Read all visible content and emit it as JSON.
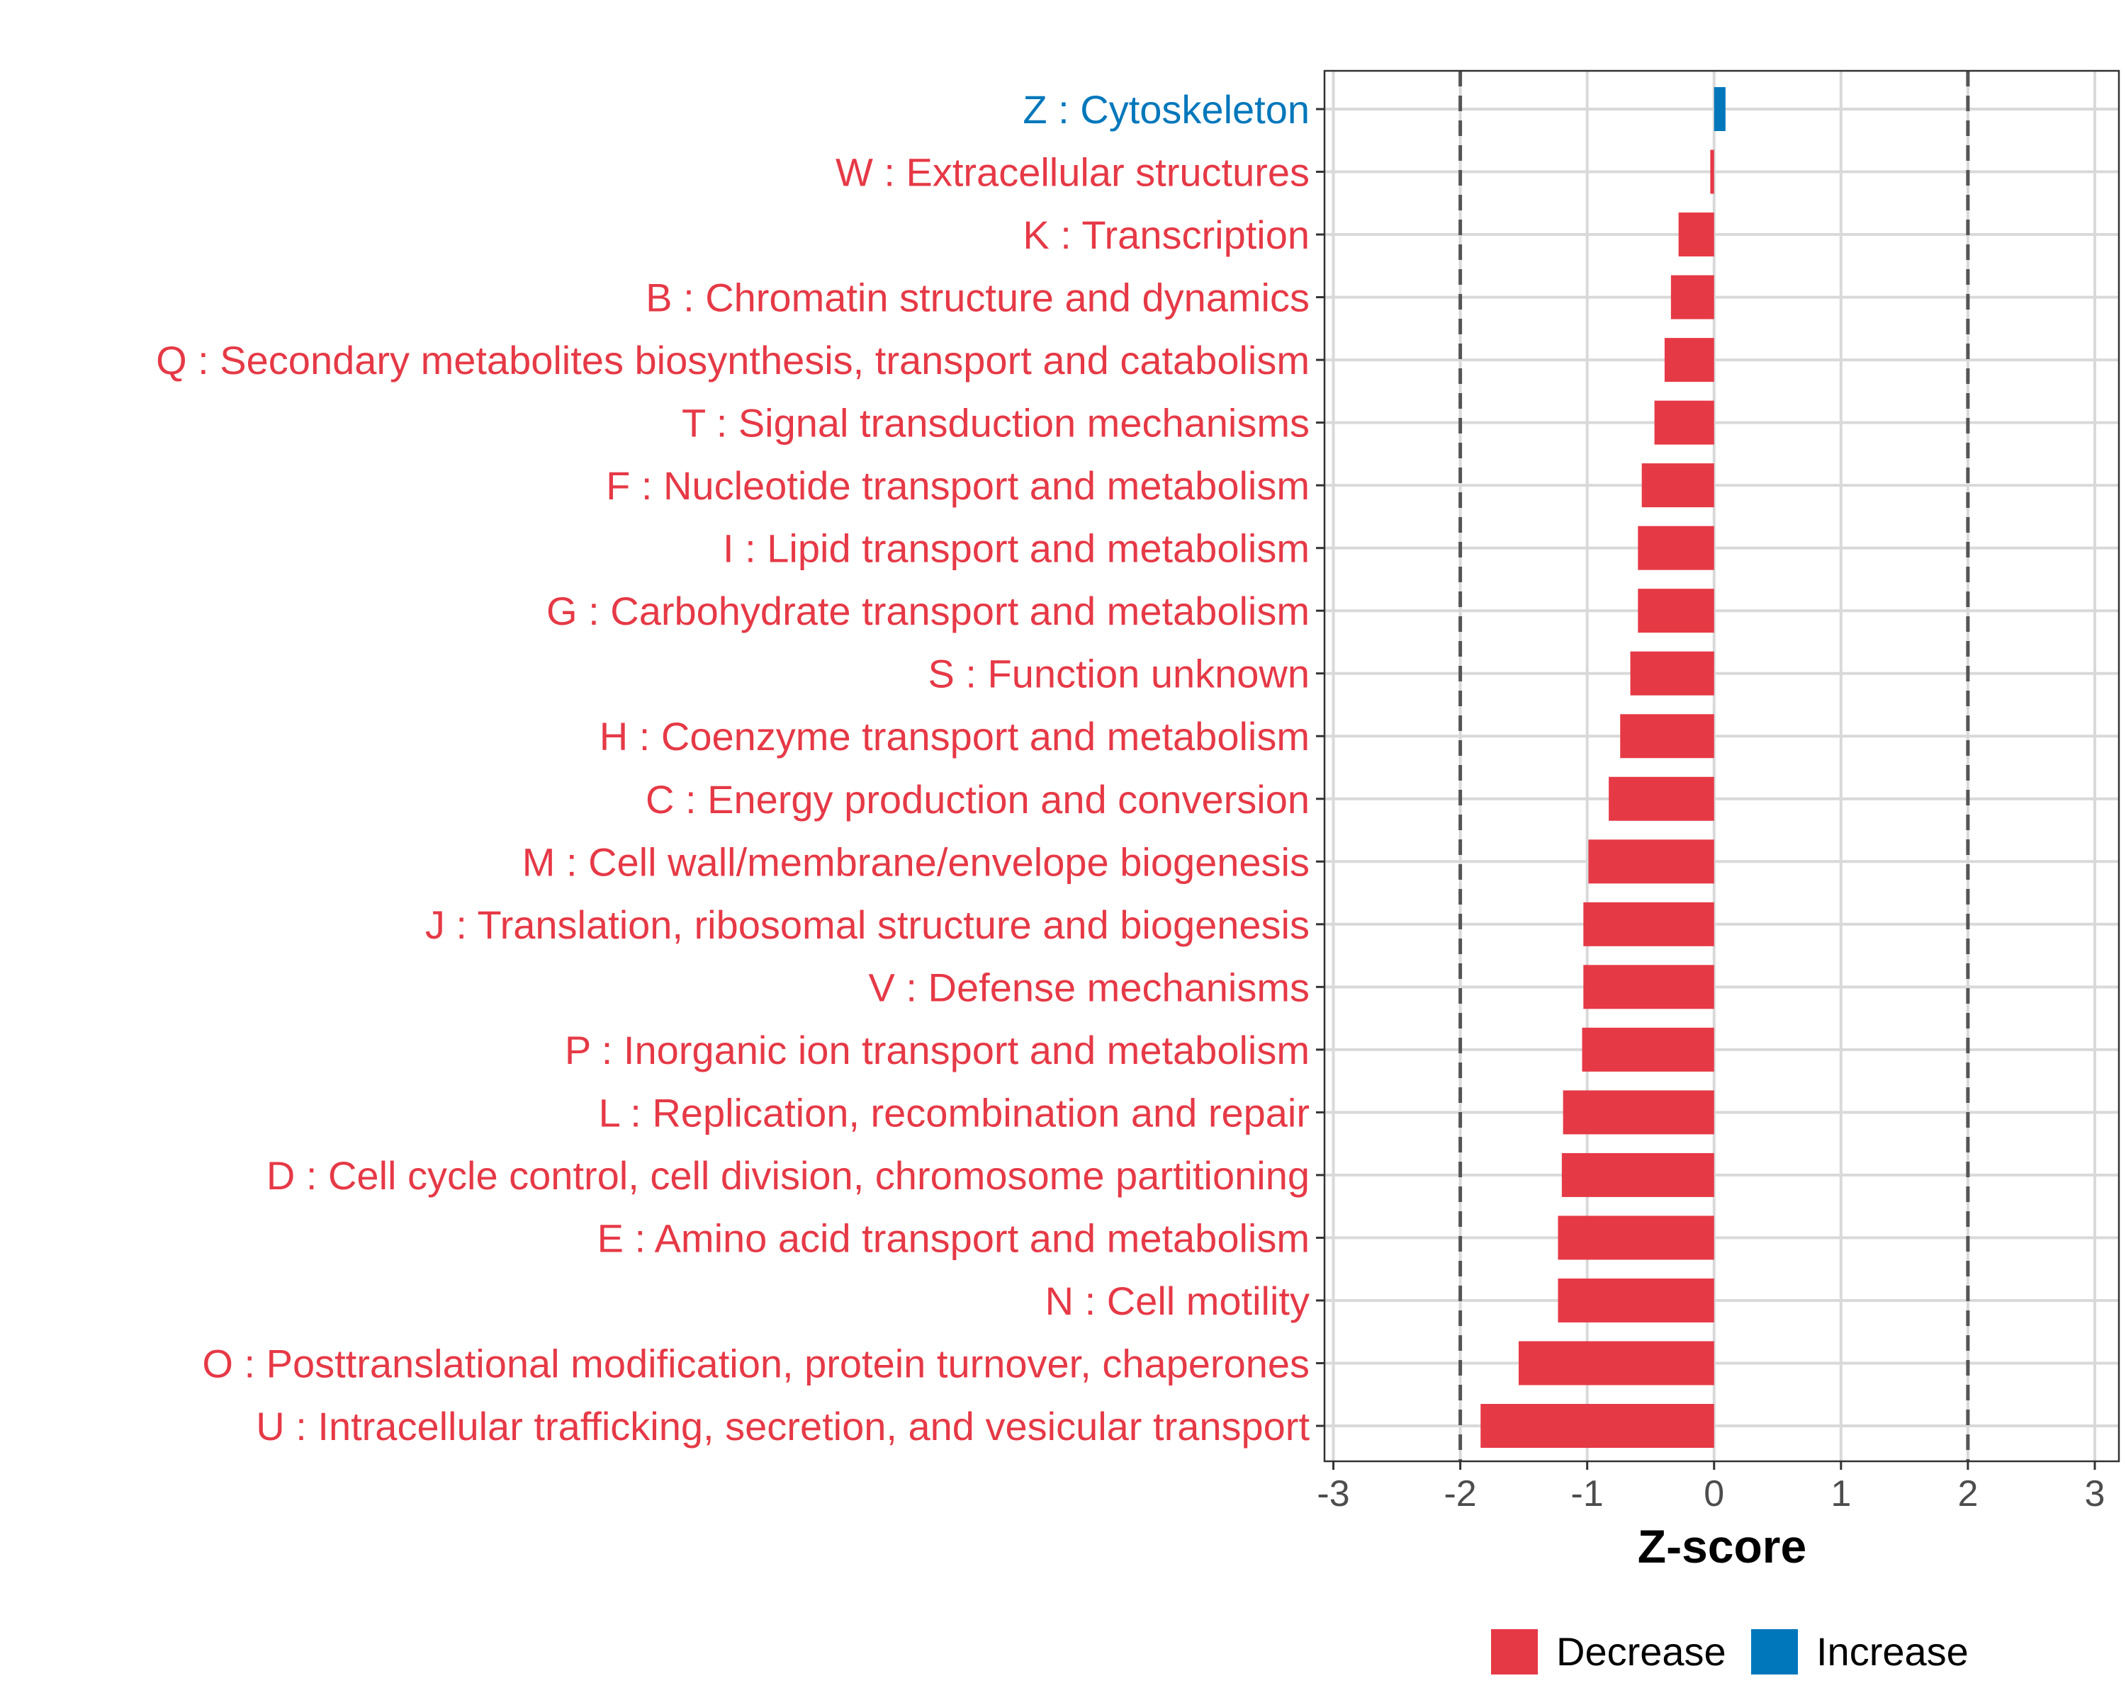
{
  "colors": {
    "decrease": "#E63946",
    "increase": "#0077BB"
  },
  "chart_data": {
    "type": "bar",
    "orientation": "horizontal",
    "title": "",
    "xlabel": "Z-score",
    "ylabel": "",
    "xlim": [
      -3.07,
      3.19
    ],
    "xticks": [
      -3,
      -2,
      -1,
      0,
      1,
      2,
      3
    ],
    "xtick_labels": [
      "-3",
      "-2",
      "-1",
      "0",
      "1",
      "2",
      "3"
    ],
    "reference_lines": [
      -2,
      2
    ],
    "grid": true,
    "categories": [
      "Z : Cytoskeleton",
      "W : Extracellular structures",
      "K : Transcription",
      "B : Chromatin structure and dynamics",
      "Q : Secondary metabolites biosynthesis, transport and catabolism",
      "T : Signal transduction mechanisms",
      "F : Nucleotide transport and metabolism",
      "I : Lipid transport and metabolism",
      "G : Carbohydrate transport and metabolism",
      "S : Function unknown",
      "H : Coenzyme transport and metabolism",
      "C : Energy production and conversion",
      "M : Cell wall/membrane/envelope biogenesis",
      "J : Translation, ribosomal structure and biogenesis",
      "V : Defense mechanisms",
      "P : Inorganic ion transport and metabolism",
      "L : Replication, recombination and repair",
      "D : Cell cycle control, cell division, chromosome partitioning",
      "E : Amino acid transport and metabolism",
      "N : Cell motility",
      "O : Posttranslational modification, protein turnover, chaperones",
      "U : Intracellular trafficking, secretion, and vesicular transport"
    ],
    "values": [
      0.09,
      -0.03,
      -0.28,
      -0.34,
      -0.39,
      -0.47,
      -0.57,
      -0.6,
      -0.6,
      -0.66,
      -0.74,
      -0.83,
      -0.99,
      -1.03,
      -1.03,
      -1.04,
      -1.19,
      -1.2,
      -1.23,
      -1.23,
      -1.54,
      -1.84
    ],
    "legend": {
      "position": "bottom",
      "entries": [
        "Decrease",
        "Increase"
      ]
    }
  }
}
